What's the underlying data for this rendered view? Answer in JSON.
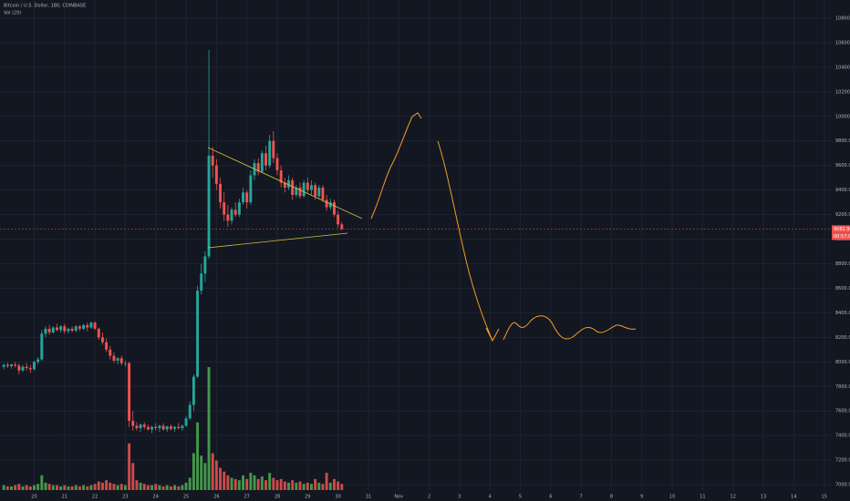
{
  "chart_data": {
    "type": "candlestick",
    "title": "Bitcoin / U.S. Dollar, 180, COINBASE",
    "indicator": "Vol (20)",
    "up_color": "#26a69a",
    "down_color": "#ef5350",
    "volume_up_color": "#4caf50",
    "volume_down_color": "#ef5350",
    "grid": true,
    "ohlc": [
      [
        7960,
        7990,
        7940,
        7975
      ],
      [
        7975,
        7995,
        7950,
        7965
      ],
      [
        7965,
        7985,
        7945,
        7980
      ],
      [
        7980,
        8000,
        7955,
        7970
      ],
      [
        7970,
        7990,
        7900,
        7930
      ],
      [
        7930,
        7975,
        7920,
        7960
      ],
      [
        7960,
        7990,
        7930,
        7950
      ],
      [
        7950,
        7975,
        7910,
        7940
      ],
      [
        7940,
        8010,
        7930,
        8000
      ],
      [
        8000,
        8040,
        7980,
        8020
      ],
      [
        8020,
        8260,
        8010,
        8230
      ],
      [
        8230,
        8290,
        8200,
        8270
      ],
      [
        8270,
        8300,
        8220,
        8240
      ],
      [
        8240,
        8290,
        8230,
        8280
      ],
      [
        8280,
        8310,
        8250,
        8260
      ],
      [
        8260,
        8300,
        8240,
        8290
      ],
      [
        8290,
        8310,
        8230,
        8250
      ],
      [
        8250,
        8280,
        8230,
        8270
      ],
      [
        8270,
        8290,
        8240,
        8255
      ],
      [
        8255,
        8300,
        8240,
        8290
      ],
      [
        8290,
        8300,
        8250,
        8270
      ],
      [
        8270,
        8310,
        8260,
        8300
      ],
      [
        8300,
        8320,
        8250,
        8280
      ],
      [
        8280,
        8330,
        8270,
        8320
      ],
      [
        8320,
        8330,
        8260,
        8270
      ],
      [
        8270,
        8280,
        8180,
        8200
      ],
      [
        8200,
        8240,
        8140,
        8160
      ],
      [
        8160,
        8190,
        8080,
        8100
      ],
      [
        8100,
        8130,
        8020,
        8050
      ],
      [
        8050,
        8080,
        7990,
        8010
      ],
      [
        8010,
        8040,
        7980,
        8030
      ],
      [
        8030,
        8050,
        7970,
        7990
      ],
      [
        7990,
        8010,
        7960,
        7990
      ],
      [
        7990,
        8000,
        7470,
        7520
      ],
      [
        7520,
        7600,
        7440,
        7480
      ],
      [
        7480,
        7510,
        7440,
        7460
      ],
      [
        7460,
        7500,
        7430,
        7490
      ],
      [
        7490,
        7510,
        7450,
        7470
      ],
      [
        7470,
        7490,
        7440,
        7450
      ],
      [
        7450,
        7480,
        7420,
        7470
      ],
      [
        7470,
        7500,
        7440,
        7460
      ],
      [
        7460,
        7490,
        7430,
        7480
      ],
      [
        7480,
        7500,
        7440,
        7450
      ],
      [
        7450,
        7480,
        7430,
        7475
      ],
      [
        7475,
        7490,
        7440,
        7455
      ],
      [
        7455,
        7480,
        7430,
        7470
      ],
      [
        7470,
        7500,
        7450,
        7460
      ],
      [
        7460,
        7490,
        7440,
        7480
      ],
      [
        7480,
        7560,
        7470,
        7540
      ],
      [
        7540,
        7680,
        7530,
        7650
      ],
      [
        7650,
        7900,
        7600,
        7880
      ],
      [
        7880,
        8620,
        7870,
        8580
      ],
      [
        8580,
        8800,
        8550,
        8720
      ],
      [
        8720,
        8900,
        8650,
        8860
      ],
      [
        8860,
        10540,
        8840,
        9680
      ],
      [
        9680,
        9750,
        9500,
        9600
      ],
      [
        9600,
        9650,
        9400,
        9450
      ],
      [
        9450,
        9500,
        9250,
        9300
      ],
      [
        9300,
        9380,
        9150,
        9200
      ],
      [
        9200,
        9280,
        9100,
        9150
      ],
      [
        9150,
        9260,
        9120,
        9240
      ],
      [
        9240,
        9300,
        9180,
        9200
      ],
      [
        9200,
        9330,
        9180,
        9300
      ],
      [
        9300,
        9420,
        9280,
        9380
      ],
      [
        9380,
        9400,
        9250,
        9300
      ],
      [
        9300,
        9560,
        9280,
        9520
      ],
      [
        9520,
        9650,
        9480,
        9620
      ],
      [
        9620,
        9660,
        9520,
        9550
      ],
      [
        9550,
        9720,
        9540,
        9700
      ],
      [
        9700,
        9760,
        9560,
        9600
      ],
      [
        9600,
        9850,
        9580,
        9800
      ],
      [
        9800,
        9880,
        9620,
        9660
      ],
      [
        9660,
        9700,
        9520,
        9560
      ],
      [
        9560,
        9600,
        9420,
        9460
      ],
      [
        9460,
        9500,
        9380,
        9420
      ],
      [
        9420,
        9520,
        9400,
        9480
      ],
      [
        9480,
        9500,
        9320,
        9360
      ],
      [
        9360,
        9440,
        9340,
        9420
      ],
      [
        9420,
        9460,
        9330,
        9350
      ],
      [
        9350,
        9480,
        9340,
        9460
      ],
      [
        9460,
        9500,
        9380,
        9400
      ],
      [
        9400,
        9480,
        9360,
        9440
      ],
      [
        9440,
        9460,
        9320,
        9350
      ],
      [
        9350,
        9440,
        9330,
        9420
      ],
      [
        9420,
        9440,
        9300,
        9320
      ],
      [
        9320,
        9360,
        9230,
        9260
      ],
      [
        9260,
        9330,
        9240,
        9300
      ],
      [
        9300,
        9320,
        9180,
        9200
      ],
      [
        9200,
        9230,
        9090,
        9120
      ],
      [
        9120,
        9140,
        9070,
        9083
      ]
    ],
    "volumes": [
      4,
      3,
      3,
      4,
      5,
      3,
      4,
      3,
      4,
      5,
      12,
      6,
      5,
      4,
      4,
      3,
      4,
      3,
      3,
      4,
      3,
      4,
      3,
      4,
      5,
      7,
      6,
      8,
      6,
      5,
      4,
      5,
      4,
      38,
      22,
      8,
      6,
      5,
      4,
      4,
      5,
      4,
      3,
      4,
      3,
      4,
      3,
      4,
      6,
      10,
      30,
      55,
      28,
      22,
      100,
      30,
      24,
      18,
      15,
      12,
      10,
      9,
      8,
      12,
      9,
      14,
      12,
      9,
      11,
      8,
      14,
      10,
      8,
      9,
      7,
      6,
      8,
      6,
      7,
      5,
      6,
      5,
      9,
      6,
      5,
      14,
      6,
      9,
      7,
      5
    ],
    "xlim": [
      -1,
      218
    ],
    "xticks": [
      {
        "value": 8,
        "label": "20"
      },
      {
        "value": 16,
        "label": "21"
      },
      {
        "value": 24,
        "label": "22"
      },
      {
        "value": 32,
        "label": "23"
      },
      {
        "value": 40,
        "label": "24"
      },
      {
        "value": 48,
        "label": "25"
      },
      {
        "value": 56,
        "label": "26"
      },
      {
        "value": 64,
        "label": "27"
      },
      {
        "value": 72,
        "label": "28"
      },
      {
        "value": 80,
        "label": "29"
      },
      {
        "value": 88,
        "label": "30"
      },
      {
        "value": 96,
        "label": "31"
      },
      {
        "value": 104,
        "label": "Nov"
      },
      {
        "value": 112,
        "label": "2"
      },
      {
        "value": 120,
        "label": "3"
      },
      {
        "value": 128,
        "label": "4"
      },
      {
        "value": 136,
        "label": "5"
      },
      {
        "value": 144,
        "label": "6"
      },
      {
        "value": 152,
        "label": "7"
      },
      {
        "value": 160,
        "label": "8"
      },
      {
        "value": 168,
        "label": "9"
      },
      {
        "value": 176,
        "label": "10"
      },
      {
        "value": 184,
        "label": "11"
      },
      {
        "value": 192,
        "label": "12"
      },
      {
        "value": 200,
        "label": "13"
      },
      {
        "value": 208,
        "label": "14"
      },
      {
        "value": 216,
        "label": "15"
      }
    ],
    "ylim": [
      6956,
      10948
    ],
    "yticks": [
      {
        "value": 7000,
        "label": "7000.00"
      },
      {
        "value": 7200,
        "label": "7200.00"
      },
      {
        "value": 7400,
        "label": "7400.00"
      },
      {
        "value": 7600,
        "label": "7600.00"
      },
      {
        "value": 7800,
        "label": "7800.00"
      },
      {
        "value": 8000,
        "label": "8000.00"
      },
      {
        "value": 8200,
        "label": "8200.00"
      },
      {
        "value": 8400,
        "label": "8400.00"
      },
      {
        "value": 8600,
        "label": "8600.00"
      },
      {
        "value": 8800,
        "label": "8800.00"
      },
      {
        "value": 9000,
        "label": "9000.00"
      },
      {
        "value": 9200,
        "label": "9200.00"
      },
      {
        "value": 9400,
        "label": "9400.00"
      },
      {
        "value": 9600,
        "label": "9600.00"
      },
      {
        "value": 9800,
        "label": "9800.00"
      },
      {
        "value": 10000,
        "label": "10000.00"
      },
      {
        "value": 10200,
        "label": "10200.00"
      },
      {
        "value": 10400,
        "label": "10400.00"
      },
      {
        "value": 10600,
        "label": "10600.00"
      },
      {
        "value": 10800,
        "label": "10800.00"
      }
    ],
    "last_price": {
      "value": 9082.9,
      "label": "9082.90"
    },
    "countdown": "00:57:00"
  }
}
